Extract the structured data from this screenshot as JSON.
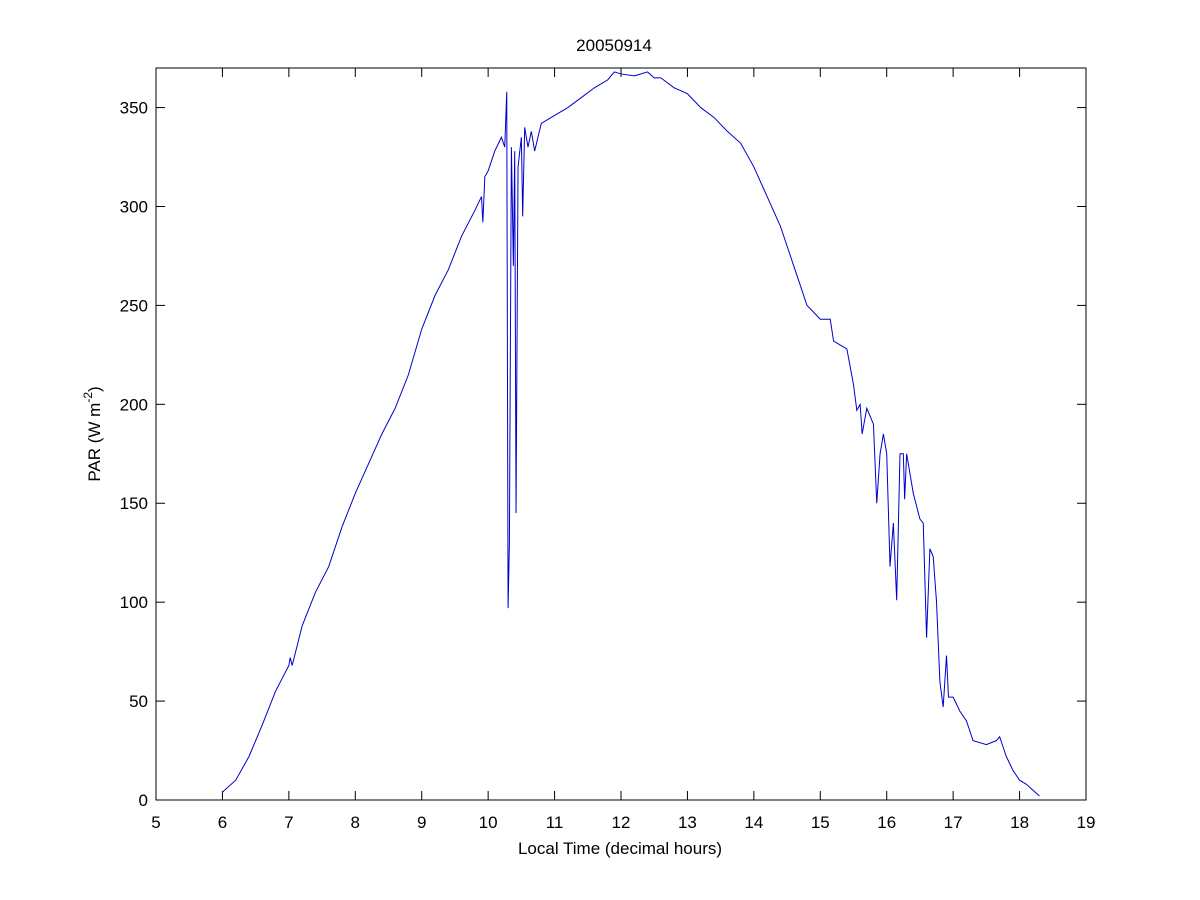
{
  "chart_data": {
    "type": "line",
    "title": "20050914",
    "xlabel": "Local Time (decimal hours)",
    "ylabel": [
      "PAR (W m",
      "-2",
      ")"
    ],
    "xlim": [
      5,
      19
    ],
    "xticks": [
      5,
      6,
      7,
      8,
      9,
      10,
      11,
      12,
      13,
      14,
      15,
      16,
      17,
      18,
      19
    ],
    "ylim": [
      0,
      370
    ],
    "yticks": [
      0,
      50,
      100,
      150,
      200,
      250,
      300,
      350
    ],
    "grid": false,
    "series": [
      {
        "color": "#0000cc",
        "x": [
          6.0,
          6.2,
          6.4,
          6.6,
          6.8,
          7.0,
          7.02,
          7.05,
          7.2,
          7.4,
          7.6,
          7.8,
          8.0,
          8.2,
          8.4,
          8.6,
          8.8,
          9.0,
          9.2,
          9.4,
          9.6,
          9.8,
          9.9,
          9.92,
          9.95,
          10.0,
          10.1,
          10.2,
          10.25,
          10.28,
          10.3,
          10.32,
          10.35,
          10.38,
          10.4,
          10.42,
          10.45,
          10.5,
          10.52,
          10.55,
          10.6,
          10.65,
          10.7,
          10.8,
          11.0,
          11.2,
          11.4,
          11.6,
          11.8,
          11.9,
          12.0,
          12.2,
          12.4,
          12.5,
          12.6,
          12.8,
          13.0,
          13.2,
          13.4,
          13.6,
          13.8,
          14.0,
          14.2,
          14.4,
          14.6,
          14.8,
          15.0,
          15.15,
          15.2,
          15.4,
          15.5,
          15.55,
          15.6,
          15.63,
          15.7,
          15.8,
          15.85,
          15.9,
          15.95,
          16.0,
          16.05,
          16.1,
          16.15,
          16.2,
          16.25,
          16.27,
          16.3,
          16.4,
          16.5,
          16.55,
          16.6,
          16.65,
          16.7,
          16.75,
          16.8,
          16.85,
          16.9,
          16.93,
          17.0,
          17.1,
          17.2,
          17.3,
          17.5,
          17.65,
          17.7,
          17.8,
          17.9,
          18.0,
          18.1,
          18.2,
          18.3
        ],
        "values": [
          4,
          10,
          22,
          38,
          55,
          68,
          72,
          68,
          88,
          105,
          118,
          138,
          155,
          170,
          185,
          198,
          215,
          238,
          255,
          268,
          285,
          298,
          305,
          292,
          315,
          318,
          328,
          335,
          330,
          358,
          97,
          130,
          330,
          270,
          328,
          145,
          320,
          335,
          295,
          340,
          330,
          338,
          328,
          342,
          346,
          350,
          355,
          360,
          364,
          368,
          367,
          366,
          368,
          365,
          365,
          360,
          357,
          350,
          345,
          338,
          332,
          320,
          305,
          290,
          270,
          250,
          243,
          243,
          232,
          228,
          210,
          197,
          200,
          185,
          198,
          190,
          150,
          175,
          185,
          175,
          118,
          140,
          101,
          175,
          175,
          152,
          175,
          155,
          142,
          140,
          82,
          127,
          123,
          100,
          60,
          47,
          73,
          52,
          52,
          45,
          40,
          30,
          28,
          30,
          32,
          22,
          15,
          10,
          8,
          5,
          2
        ]
      }
    ]
  }
}
